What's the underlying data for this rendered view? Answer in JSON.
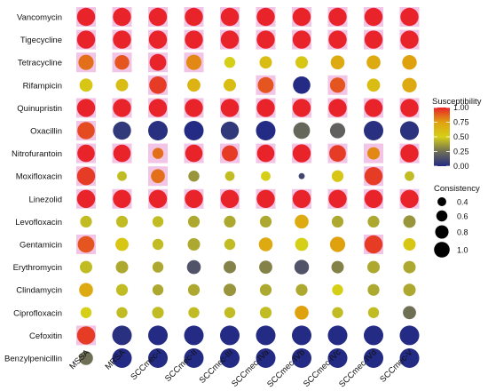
{
  "chart_data": {
    "type": "bubble-heatmap",
    "rows": [
      "Vancomycin",
      "Tigecycline",
      "Tetracycline",
      "Rifampicin",
      "Quinupristin",
      "Oxacillin",
      "Nitrofurantoin",
      "Moxifloxacin",
      "Linezolid",
      "Levofloxacin",
      "Gentamicin",
      "Erythromycin",
      "Clindamycin",
      "Ciprofloxacin",
      "Cefoxitin",
      "Benzylpenicillin"
    ],
    "columns": [
      "MSSA",
      "MRSA",
      "SCCmec-I",
      "SCCmec-II",
      "SCCmec-III",
      "SCCmec-IVa",
      "SCCmec-IVb",
      "SCCmec-IVc",
      "SCCmec-IVd",
      "SCCmec-V"
    ],
    "susceptibility": [
      [
        1.0,
        1.0,
        1.0,
        1.0,
        1.0,
        1.0,
        1.0,
        1.0,
        1.0,
        1.0
      ],
      [
        1.0,
        1.0,
        1.0,
        1.0,
        1.0,
        1.0,
        1.0,
        1.0,
        1.0,
        1.0
      ],
      [
        0.85,
        0.9,
        1.0,
        0.8,
        0.5,
        0.6,
        0.55,
        0.7,
        0.7,
        0.75
      ],
      [
        0.55,
        0.6,
        0.95,
        0.65,
        0.6,
        0.9,
        0.0,
        0.9,
        0.6,
        0.7
      ],
      [
        1.0,
        1.0,
        1.0,
        1.0,
        1.0,
        1.0,
        1.0,
        1.0,
        1.0,
        1.0
      ],
      [
        0.92,
        0.05,
        0.02,
        0.0,
        0.05,
        0.0,
        0.22,
        0.2,
        0.02,
        0.03
      ],
      [
        1.0,
        1.0,
        0.85,
        1.0,
        0.95,
        1.0,
        1.0,
        0.95,
        0.8,
        1.0
      ],
      [
        0.95,
        0.45,
        0.85,
        0.35,
        0.45,
        0.5,
        0.1,
        0.55,
        0.95,
        0.45
      ],
      [
        1.0,
        1.0,
        1.0,
        1.0,
        1.0,
        1.0,
        1.0,
        1.0,
        1.0,
        1.0
      ],
      [
        0.45,
        0.45,
        0.45,
        0.4,
        0.4,
        0.4,
        0.7,
        0.4,
        0.4,
        0.35
      ],
      [
        0.9,
        0.55,
        0.45,
        0.4,
        0.45,
        0.7,
        0.5,
        0.75,
        0.95,
        0.55
      ],
      [
        0.45,
        0.4,
        0.4,
        0.15,
        0.3,
        0.3,
        0.15,
        0.3,
        0.4,
        0.4
      ],
      [
        0.7,
        0.45,
        0.4,
        0.4,
        0.35,
        0.4,
        0.4,
        0.5,
        0.4,
        0.4
      ],
      [
        0.5,
        0.45,
        0.45,
        0.45,
        0.45,
        0.45,
        0.75,
        0.45,
        0.45,
        0.25
      ],
      [
        0.95,
        0.02,
        0.0,
        0.0,
        0.0,
        0.0,
        0.0,
        0.0,
        0.0,
        0.0
      ],
      [
        0.25,
        0.0,
        0.0,
        0.0,
        0.0,
        0.0,
        0.0,
        0.0,
        0.0,
        0.0
      ]
    ],
    "consistency": [
      [
        0.9,
        0.9,
        0.9,
        0.9,
        0.9,
        0.9,
        0.9,
        0.9,
        0.9,
        0.9
      ],
      [
        0.9,
        0.9,
        0.9,
        0.9,
        0.9,
        0.9,
        0.9,
        0.9,
        0.9,
        0.9
      ],
      [
        0.7,
        0.65,
        0.8,
        0.7,
        0.4,
        0.5,
        0.5,
        0.6,
        0.6,
        0.65
      ],
      [
        0.55,
        0.5,
        0.85,
        0.55,
        0.5,
        0.75,
        0.85,
        0.7,
        0.55,
        0.65
      ],
      [
        0.9,
        0.9,
        0.9,
        0.9,
        0.9,
        0.9,
        0.9,
        0.9,
        0.9,
        0.9
      ],
      [
        0.85,
        0.9,
        1.0,
        1.0,
        0.9,
        1.0,
        0.8,
        0.7,
        1.0,
        0.95
      ],
      [
        0.85,
        0.85,
        0.4,
        0.85,
        0.75,
        0.85,
        0.9,
        0.8,
        0.5,
        0.9
      ],
      [
        0.9,
        0.3,
        0.6,
        0.4,
        0.3,
        0.3,
        0.05,
        0.45,
        0.9,
        0.3
      ],
      [
        0.9,
        0.9,
        0.9,
        0.9,
        0.9,
        0.9,
        0.9,
        0.9,
        0.9,
        0.9
      ],
      [
        0.45,
        0.45,
        0.4,
        0.45,
        0.45,
        0.45,
        0.6,
        0.45,
        0.45,
        0.5
      ],
      [
        0.8,
        0.55,
        0.4,
        0.5,
        0.4,
        0.6,
        0.55,
        0.7,
        0.9,
        0.5
      ],
      [
        0.5,
        0.5,
        0.4,
        0.6,
        0.5,
        0.55,
        0.65,
        0.5,
        0.5,
        0.5
      ],
      [
        0.6,
        0.45,
        0.4,
        0.45,
        0.5,
        0.45,
        0.45,
        0.4,
        0.45,
        0.5
      ],
      [
        0.4,
        0.4,
        0.45,
        0.4,
        0.4,
        0.45,
        0.6,
        0.4,
        0.4,
        0.55
      ],
      [
        0.9,
        1.0,
        1.0,
        1.0,
        1.0,
        1.0,
        1.0,
        1.0,
        1.0,
        1.0
      ],
      [
        0.6,
        1.0,
        1.0,
        1.0,
        1.0,
        1.0,
        1.0,
        1.0,
        1.0,
        1.0
      ]
    ],
    "color_legend": {
      "title": "Susceptibility",
      "range": [
        0,
        1
      ],
      "ticks": [
        "1.00",
        "0.75",
        "0.50",
        "0.25",
        "0.00"
      ],
      "colors": [
        "#e8232a",
        "#e0a10f",
        "#d6cf17",
        "#6f6f55",
        "#232b84"
      ]
    },
    "size_legend": {
      "title": "Consistency",
      "values": [
        0.4,
        0.6,
        0.8,
        1.0
      ],
      "labels": [
        "0.4",
        "0.6",
        "0.8",
        "1.0"
      ]
    },
    "background_tile_color": "#f2c4e6"
  }
}
